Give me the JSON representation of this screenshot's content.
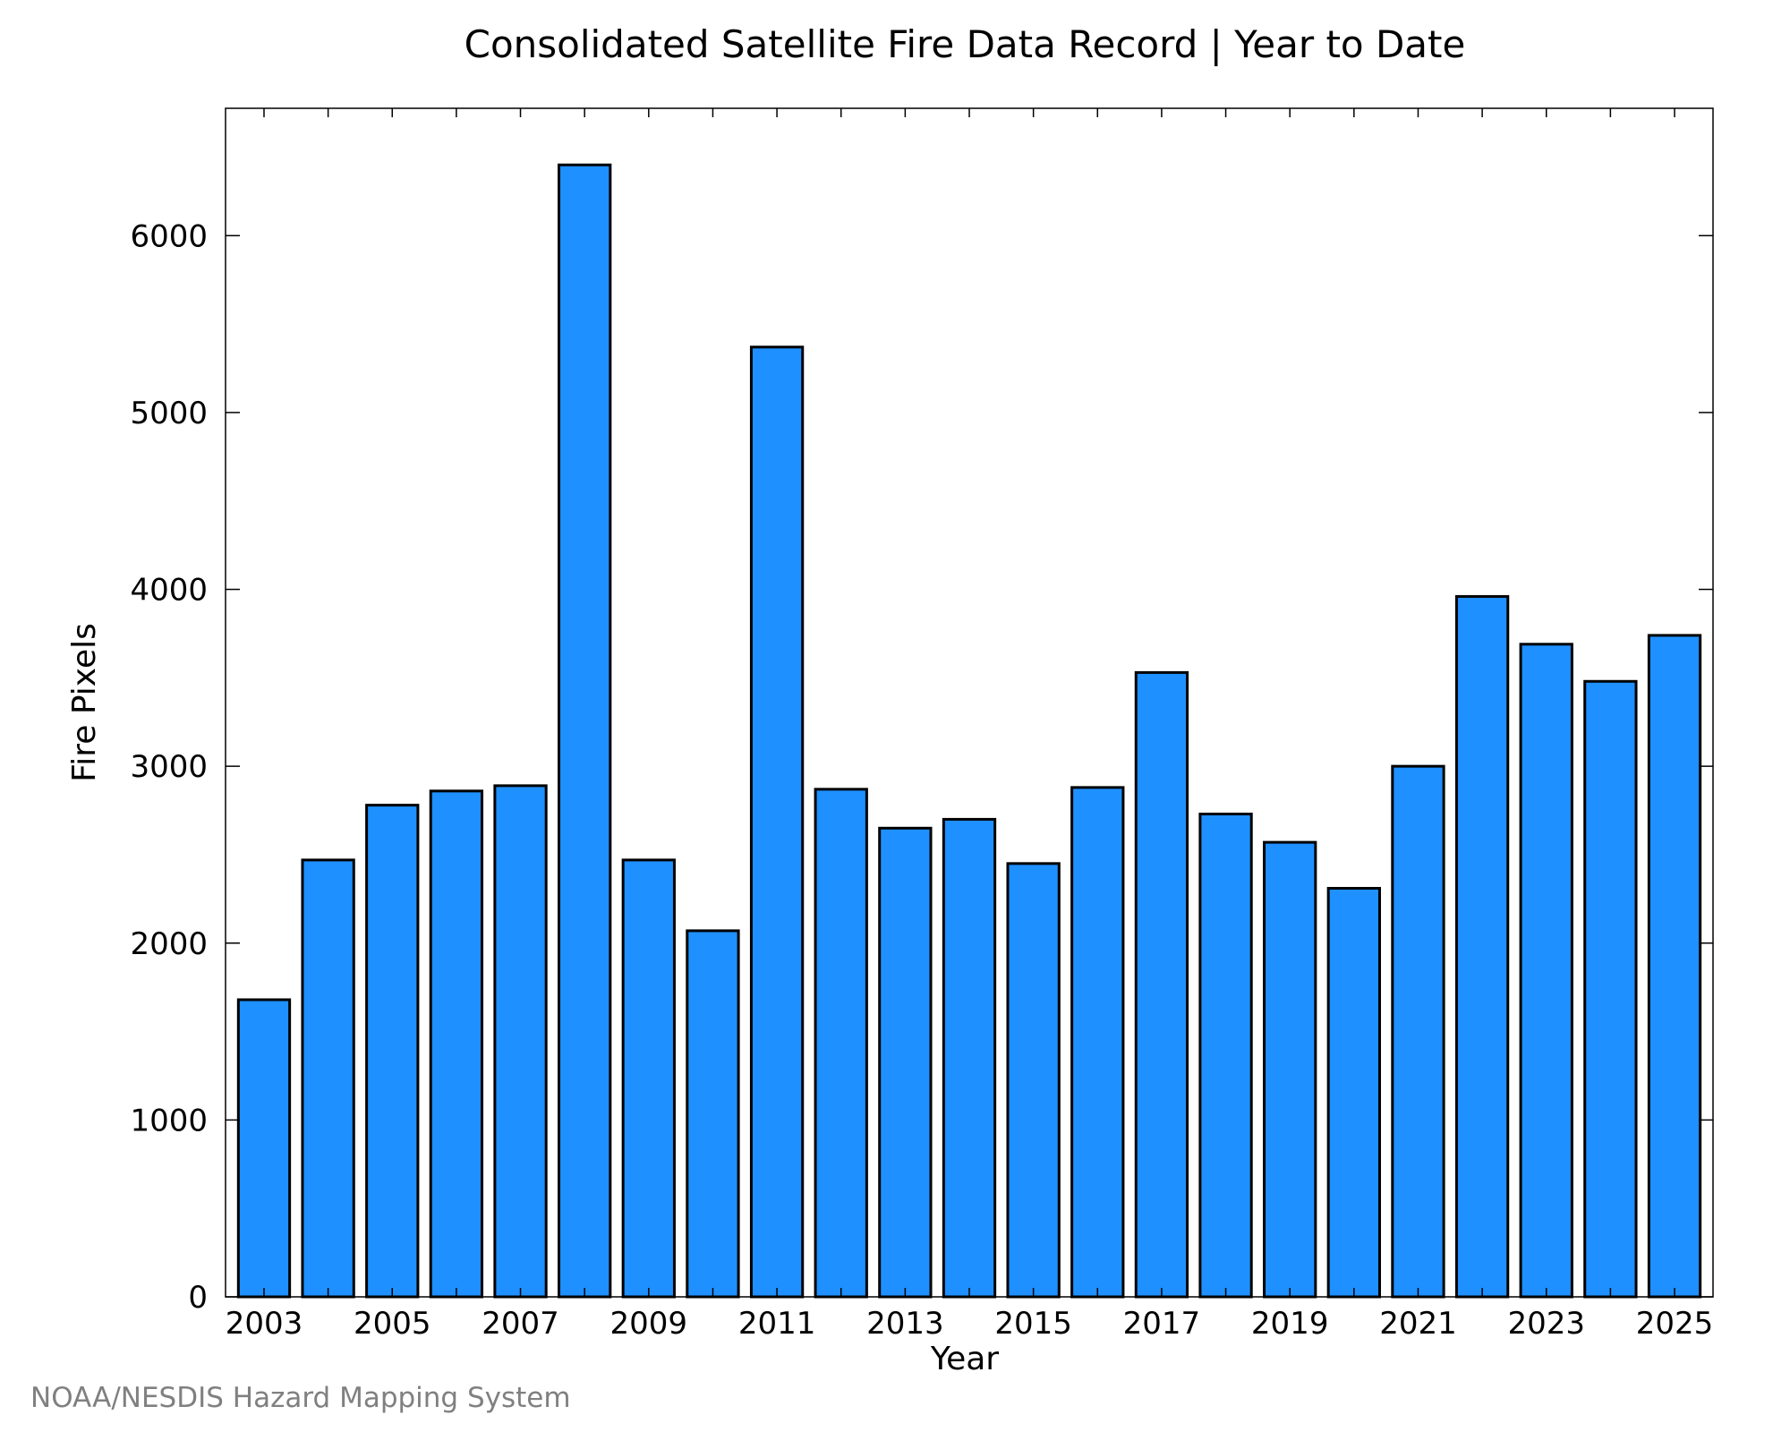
{
  "chart_data": {
    "type": "bar",
    "title": "Consolidated Satellite Fire Data Record | Year to Date",
    "xlabel": "Year",
    "ylabel": "Fire Pixels",
    "categories": [
      "2003",
      "2004",
      "2005",
      "2006",
      "2007",
      "2008",
      "2009",
      "2010",
      "2011",
      "2012",
      "2013",
      "2014",
      "2015",
      "2016",
      "2017",
      "2018",
      "2019",
      "2020",
      "2021",
      "2022",
      "2023",
      "2024",
      "2025"
    ],
    "values": [
      1680,
      2470,
      2780,
      2860,
      2890,
      6400,
      2470,
      2070,
      5370,
      2870,
      2650,
      2700,
      2450,
      2880,
      3530,
      2730,
      2570,
      2310,
      3000,
      3960,
      3690,
      3480,
      3740
    ],
    "x_tick_labels": [
      "2003",
      "2005",
      "2007",
      "2009",
      "2011",
      "2013",
      "2015",
      "2017",
      "2019",
      "2021",
      "2023",
      "2025"
    ],
    "y_tick_labels": [
      "0",
      "1000",
      "2000",
      "3000",
      "4000",
      "5000",
      "6000"
    ],
    "ylim": [
      0,
      6720
    ],
    "bar_color": "#1e90ff",
    "grid": false,
    "legend": "none"
  },
  "footer": {
    "credit": "NOAA/NESDIS Hazard Mapping System"
  }
}
